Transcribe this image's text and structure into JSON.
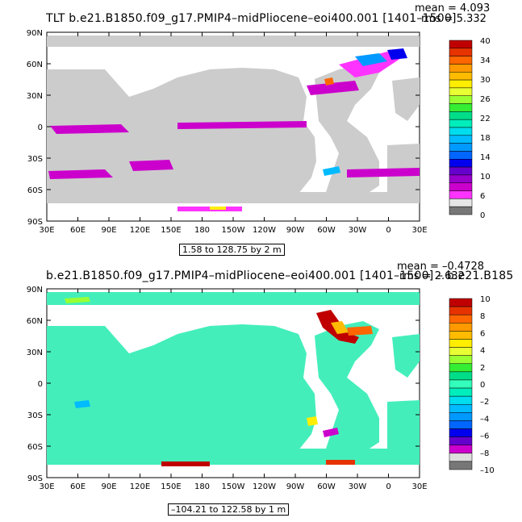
{
  "panels": [
    {
      "title": "TLT b.e21.B1850.f09_g17.PMIP4–midPliocene–eoi400.001  [1401–1500]",
      "mean": "mean = 4.093",
      "rms": "rms = 5.332",
      "range": "1.58 to 128.75 by 2 m",
      "colorbar_labels": [
        "40",
        "34",
        "30",
        "26",
        "22",
        "18",
        "14",
        "10",
        "6",
        "0"
      ],
      "colorbar_colors": [
        "#c00000",
        "#e63300",
        "#ff6600",
        "#ff9900",
        "#ffbb00",
        "#ffee00",
        "#e8ff33",
        "#99ff33",
        "#33ee33",
        "#00dd88",
        "#00eebb",
        "#00ddee",
        "#00bbff",
        "#0099ff",
        "#0066ff",
        "#0000ee",
        "#6600cc",
        "#9900cc",
        "#cc00cc",
        "#ff33ff",
        "#e6e6e6",
        "#777777"
      ],
      "ocean_color": "#cccccc",
      "land_color": "#ffffff"
    },
    {
      "title": "b.e21.B1850.f09_g17.PMIP4–midPliocene–eoi400.001  [1401–1500] – b.e21.B185",
      "mean": "mean = –0.4728",
      "rms": "rms = 2.632",
      "range": "–104.21 to 122.58 by 1 m",
      "colorbar_labels": [
        "10",
        "8",
        "6",
        "4",
        "2",
        "0",
        "–2",
        "–4",
        "–6",
        "–8",
        "–10"
      ],
      "colorbar_colors": [
        "#c00000",
        "#e63300",
        "#ff6600",
        "#ff9900",
        "#ffbb00",
        "#ffee00",
        "#e8ff33",
        "#99ff33",
        "#33ee33",
        "#00dd88",
        "#33ffbb",
        "#00eebb",
        "#00ddee",
        "#00bbff",
        "#0099ff",
        "#0066ff",
        "#0000ee",
        "#6600cc",
        "#cc00cc",
        "#dddddd",
        "#777777"
      ],
      "ocean_color": "#44eebb",
      "land_color": "#ffffff"
    }
  ],
  "lat_labels": [
    "90N",
    "60N",
    "30N",
    "0",
    "30S",
    "60S",
    "90S"
  ],
  "lon_labels": [
    "30E",
    "60E",
    "90E",
    "120E",
    "150E",
    "180",
    "150W",
    "120W",
    "90W",
    "60W",
    "30W",
    "0",
    "30E"
  ]
}
